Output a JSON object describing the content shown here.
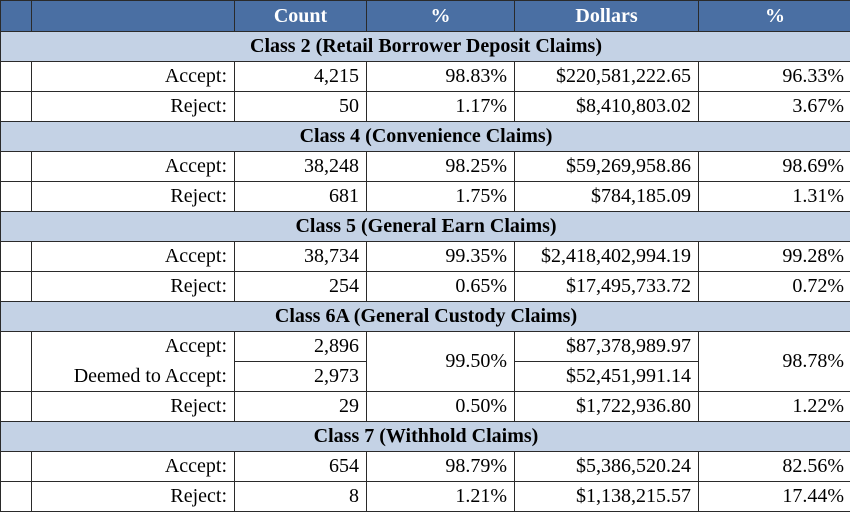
{
  "header": {
    "blank": "",
    "label": "",
    "count": "Count",
    "pct1": "%",
    "dollars": "Dollars",
    "pct2": "%"
  },
  "classes": [
    {
      "title": "Class 2 (Retail Borrower Deposit Claims)",
      "rows": [
        {
          "label": "Accept:",
          "count": "4,215",
          "pct_count": "98.83%",
          "dollars": "$220,581,222.65",
          "pct_dollars": "96.33%"
        },
        {
          "label": "Reject:",
          "count": "50",
          "pct_count": "1.17%",
          "dollars": "$8,410,803.02",
          "pct_dollars": "3.67%"
        }
      ]
    },
    {
      "title": "Class 4 (Convenience Claims)",
      "rows": [
        {
          "label": "Accept:",
          "count": "38,248",
          "pct_count": "98.25%",
          "dollars": "$59,269,958.86",
          "pct_dollars": "98.69%"
        },
        {
          "label": "Reject:",
          "count": "681",
          "pct_count": "1.75%",
          "dollars": "$784,185.09",
          "pct_dollars": "1.31%"
        }
      ]
    },
    {
      "title": "Class 5 (General Earn Claims)",
      "rows": [
        {
          "label": "Accept:",
          "count": "38,734",
          "pct_count": "99.35%",
          "dollars": "$2,418,402,994.19",
          "pct_dollars": "99.28%"
        },
        {
          "label": "Reject:",
          "count": "254",
          "pct_count": "0.65%",
          "dollars": "$17,495,733.72",
          "pct_dollars": "0.72%"
        }
      ]
    },
    {
      "title": "Class 6A (General Custody Claims)",
      "rows": [
        {
          "label": "Accept:",
          "count": "2,896",
          "dollars": "$87,378,989.97"
        },
        {
          "label": "Deemed to Accept:",
          "count": "2,973",
          "dollars": "$52,451,991.14"
        },
        {
          "label": "Reject:",
          "count": "29",
          "pct_count": "0.50%",
          "dollars": "$1,722,936.80",
          "pct_dollars": "1.22%"
        }
      ],
      "merged_pct_count": "99.50%",
      "merged_pct_dollars": "98.78%"
    },
    {
      "title": "Class 7 (Withhold Claims)",
      "rows": [
        {
          "label": "Accept:",
          "count": "654",
          "pct_count": "98.79%",
          "dollars": "$5,386,520.24",
          "pct_dollars": "82.56%"
        },
        {
          "label": "Reject:",
          "count": "8",
          "pct_count": "1.21%",
          "dollars": "$1,138,215.57",
          "pct_dollars": "17.44%"
        }
      ]
    }
  ]
}
